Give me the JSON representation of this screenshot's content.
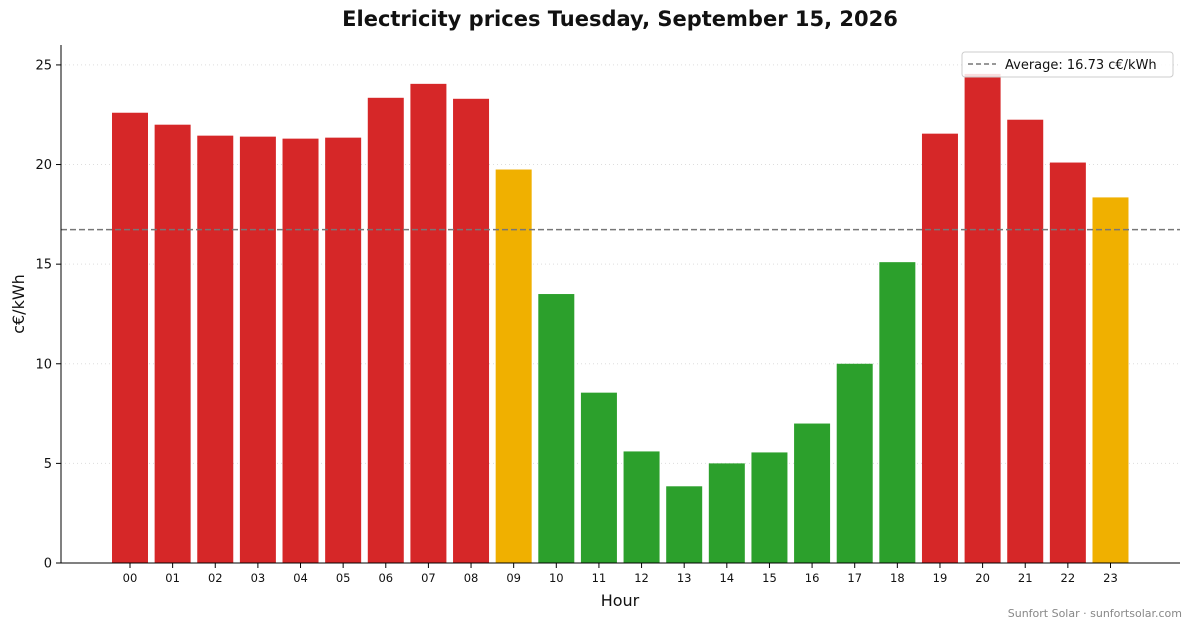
{
  "chart_data": {
    "type": "bar",
    "title": "Electricity prices Tuesday, September 15, 2026",
    "xlabel": "Hour",
    "ylabel": "c€/kWh",
    "categories": [
      "00",
      "01",
      "02",
      "03",
      "04",
      "05",
      "06",
      "07",
      "08",
      "09",
      "10",
      "11",
      "12",
      "13",
      "14",
      "15",
      "16",
      "17",
      "18",
      "19",
      "20",
      "21",
      "22",
      "23"
    ],
    "values": [
      22.6,
      22.0,
      21.45,
      21.4,
      21.3,
      21.35,
      23.35,
      24.05,
      23.3,
      19.75,
      13.5,
      8.55,
      5.6,
      3.85,
      5.0,
      5.55,
      7.0,
      10.0,
      15.1,
      21.55,
      24.55,
      22.25,
      20.1,
      18.35
    ],
    "bar_colors": [
      "#d62728",
      "#d62728",
      "#d62728",
      "#d62728",
      "#d62728",
      "#d62728",
      "#d62728",
      "#d62728",
      "#d62728",
      "#f0b000",
      "#2ca02c",
      "#2ca02c",
      "#2ca02c",
      "#2ca02c",
      "#2ca02c",
      "#2ca02c",
      "#2ca02c",
      "#2ca02c",
      "#2ca02c",
      "#d62728",
      "#d62728",
      "#d62728",
      "#d62728",
      "#f0b000"
    ],
    "ylim": [
      0,
      26
    ],
    "yticks": [
      0,
      5,
      10,
      15,
      20,
      25
    ],
    "grid": "y-dotted",
    "average": 16.73,
    "legend": {
      "label": "Average: 16.73 c€/kWh",
      "placement": "top-right"
    }
  },
  "credit": "Sunfort Solar · sunfortsolar.com",
  "colors": {
    "high": "#d62728",
    "medium": "#f0b000",
    "low": "#2ca02c",
    "average_line": "#777777"
  }
}
